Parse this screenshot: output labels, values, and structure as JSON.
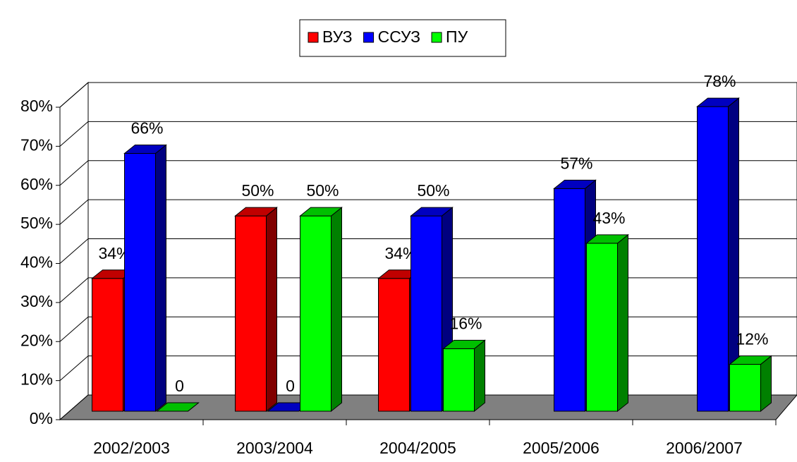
{
  "chart_data": {
    "type": "bar3d",
    "categories": [
      "2002/2003",
      "2003/2004",
      "2004/2005",
      "2005/2006",
      "2006/2007"
    ],
    "series": [
      {
        "name": "ВУЗ",
        "color": "#ff0000",
        "values": [
          34,
          50,
          34,
          null,
          null
        ],
        "value_labels": [
          "34%",
          "50%",
          "34%",
          null,
          null
        ]
      },
      {
        "name": "ССУЗ",
        "color": "#0000ff",
        "values": [
          66,
          0,
          50,
          57,
          78
        ],
        "value_labels": [
          "66%",
          "0",
          "50%",
          "57%",
          "78%"
        ]
      },
      {
        "name": "ПУ",
        "color": "#00ff00",
        "values": [
          0,
          50,
          16,
          43,
          12
        ],
        "value_labels": [
          "0",
          "50%",
          "16%",
          "43%",
          "12%"
        ]
      }
    ],
    "ylim": [
      0,
      80
    ],
    "yticks": [
      {
        "value": 0,
        "label": "0%"
      },
      {
        "value": 10,
        "label": "10%"
      },
      {
        "value": 20,
        "label": "20%"
      },
      {
        "value": 30,
        "label": "30%"
      },
      {
        "value": 40,
        "label": "40%"
      },
      {
        "value": 50,
        "label": "50%"
      },
      {
        "value": 60,
        "label": "60%"
      },
      {
        "value": 70,
        "label": "70%"
      },
      {
        "value": 80,
        "label": "80%"
      }
    ],
    "grid": true,
    "legend": "top"
  }
}
